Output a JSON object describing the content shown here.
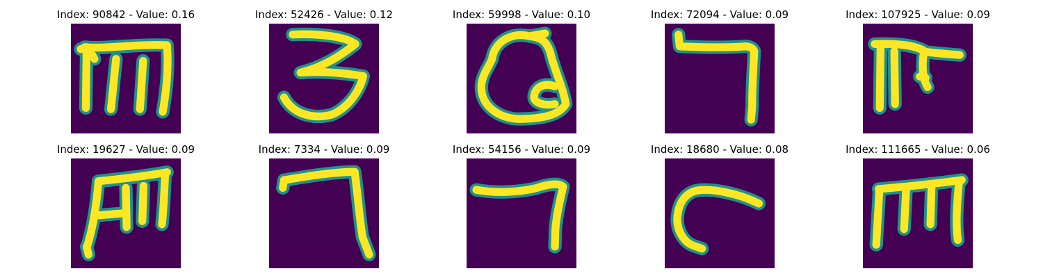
{
  "chart_data": {
    "type": "image_grid",
    "rows": 2,
    "cols": 5,
    "colormap": "viridis",
    "colors": {
      "background": "#440154",
      "mid": "#21918c",
      "high": "#fde725"
    },
    "panels": [
      {
        "title": "Index: 90842 - Value: 0.16",
        "index": 90842,
        "value": 0.16,
        "glyph": "m-glyph"
      },
      {
        "title": "Index: 52426 - Value: 0.12",
        "index": 52426,
        "value": 0.12,
        "glyph": "three-glyph"
      },
      {
        "title": "Index: 59998 - Value: 0.10",
        "index": 59998,
        "value": 0.1,
        "glyph": "loop-glyph"
      },
      {
        "title": "Index: 72094 - Value: 0.09",
        "index": 72094,
        "value": 0.09,
        "glyph": "seven-glyph"
      },
      {
        "title": "Index: 107925 - Value: 0.09",
        "index": 107925,
        "value": 0.09,
        "glyph": "bar-glyph"
      },
      {
        "title": "Index: 19627 - Value: 0.09",
        "index": 19627,
        "value": 0.09,
        "glyph": "m-glyph"
      },
      {
        "title": "Index: 7334 - Value: 0.09",
        "index": 7334,
        "value": 0.09,
        "glyph": "seven-glyph"
      },
      {
        "title": "Index: 54156 - Value: 0.09",
        "index": 54156,
        "value": 0.09,
        "glyph": "seven-glyph"
      },
      {
        "title": "Index: 18680 - Value: 0.08",
        "index": 18680,
        "value": 0.08,
        "glyph": "curve-glyph"
      },
      {
        "title": "Index: 111665 - Value: 0.06",
        "index": 111665,
        "value": 0.06,
        "glyph": "m-glyph"
      }
    ]
  }
}
